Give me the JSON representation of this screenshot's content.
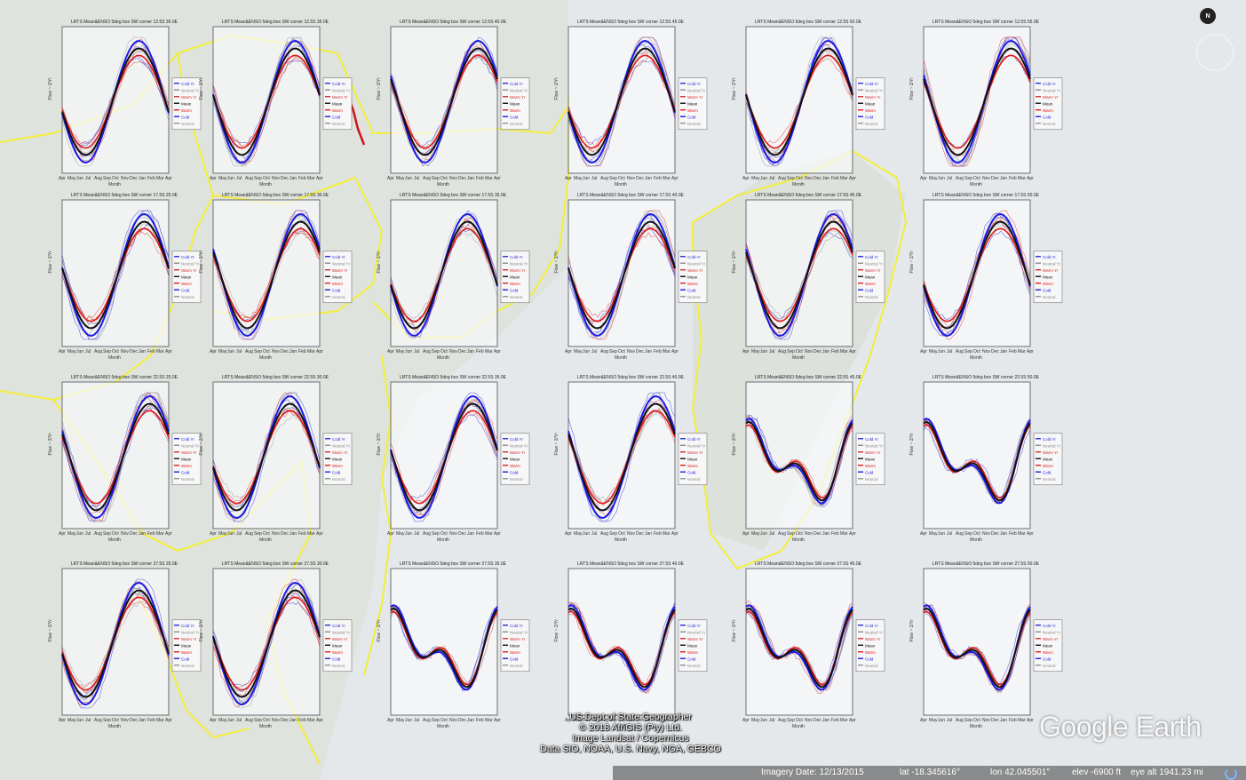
{
  "map": {
    "panel_title": "LRTS Mean&ENSO 5deg box SW corner",
    "panel_titles_by_row": [
      [
        "12.5S 30.0E",
        "12.5S 35.0E",
        "12.5S 40.0E",
        "12.5S 45.0E",
        "12.5S 50.0E",
        "12.5S 55.0E"
      ],
      [
        "17.5S 25.0E",
        "17.5S 30.0E",
        "17.5S 35.0E",
        "17.5S 40.0E",
        "17.5S 45.0E",
        "17.5S 50.0E"
      ],
      [
        "22.5S 25.0E",
        "22.5S 30.0E",
        "22.5S 35.0E",
        "22.5S 40.0E",
        "22.5S 45.0E",
        "22.5S 50.0E"
      ],
      [
        "27.5S 25.0E",
        "27.5S 30.0E",
        "27.5S 35.0E",
        "27.5S 40.0E",
        "27.5S 45.0E",
        "27.5S 50.0E"
      ],
      [
        "32.5S 25.0E",
        "32.5S 30.0E",
        "32.5S 35.0E",
        "32.5S 40.0E",
        "32.5S 45.0E",
        "32.5S 50.0E"
      ]
    ],
    "x_axis_label": "Month",
    "y_axis_label": "Flow ~ 2/Yr",
    "months": [
      "Apr",
      "May",
      "Jun",
      "Jul",
      "Aug",
      "Sep",
      "Oct",
      "Nov",
      "Dec",
      "Jan",
      "Feb",
      "Mar",
      "Apr"
    ],
    "legend": [
      {
        "label": "Cold Yr",
        "color": "#2a2ad8"
      },
      {
        "label": "Neutral Yr",
        "color": "#8a8a8a"
      },
      {
        "label": "Warm Yr",
        "color": "#d92a2a"
      },
      {
        "label": "Mean",
        "color": "#111111"
      },
      {
        "label": "Warm",
        "color": "#e21a1a"
      },
      {
        "label": "Cold",
        "color": "#1a1ae6"
      },
      {
        "label": "Neutral",
        "color": "#909090"
      }
    ],
    "colors": {
      "border": "#f3ee3a",
      "river": "#d0101a",
      "ocean": "#d9dde1"
    }
  },
  "compass": {
    "label": "N"
  },
  "attribution": {
    "line1": "US Dept of State Geographer",
    "line2": "© 2018 AfriGIS (Pty) Ltd.",
    "line3": "Image Landsat / Copernicus",
    "line4": "Data SIO, NOAA, U.S. Navy, NGA, GEBCO"
  },
  "logo": {
    "text": "Google Earth"
  },
  "status": {
    "imagery_date": "Imagery Date: 12/13/2015",
    "lat": "lat  -18.345616°",
    "lon": "lon   42.045501°",
    "elev": "elev -6900 ft",
    "eye_alt": "eye alt 1941.23 mi"
  }
}
